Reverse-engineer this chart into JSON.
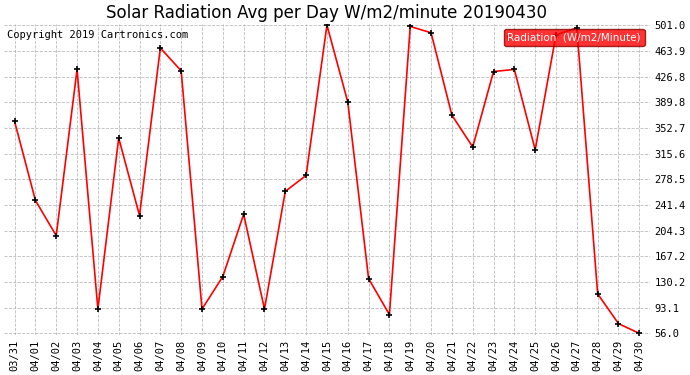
{
  "title": "Solar Radiation Avg per Day W/m2/minute 20190430",
  "copyright": "Copyright 2019 Cartronics.com",
  "legend_label": "Radiation  (W/m2/Minute)",
  "x_labels": [
    "03/31",
    "04/01",
    "04/02",
    "04/03",
    "04/04",
    "04/05",
    "04/06",
    "04/07",
    "04/08",
    "04/09",
    "04/10",
    "04/11",
    "04/12",
    "04/13",
    "04/14",
    "04/15",
    "04/16",
    "04/17",
    "04/18",
    "04/19",
    "04/20",
    "04/21",
    "04/22",
    "04/23",
    "04/24",
    "04/25",
    "04/26",
    "04/27",
    "04/28",
    "04/29",
    "04/30"
  ],
  "y_values": [
    362,
    248,
    197,
    437,
    91,
    338,
    226,
    468,
    435,
    91,
    138,
    228,
    91,
    261,
    284,
    501,
    390,
    135,
    83,
    499,
    490,
    371,
    325,
    434,
    437,
    321,
    487,
    497,
    113,
    70,
    56
  ],
  "y_ticks": [
    56.0,
    93.1,
    130.2,
    167.2,
    204.3,
    241.4,
    278.5,
    315.6,
    352.7,
    389.8,
    426.8,
    463.9,
    501.0
  ],
  "line_color": "red",
  "marker_color": "black",
  "bg_color": "#ffffff",
  "grid_color": "#aaaaaa",
  "legend_bg": "red",
  "legend_text_color": "white",
  "title_fontsize": 12,
  "copyright_fontsize": 7.5,
  "tick_fontsize": 7.5,
  "ylim": [
    56.0,
    501.0
  ]
}
